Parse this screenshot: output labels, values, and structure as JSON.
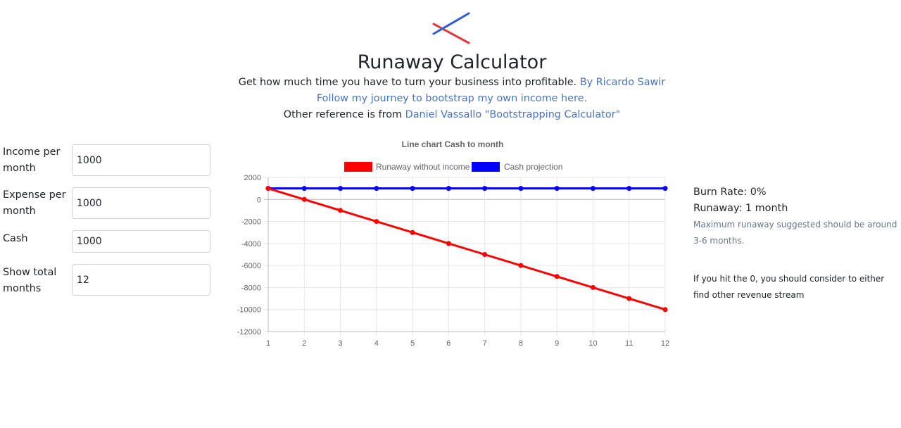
{
  "header": {
    "title": "Runaway Calculator",
    "subtitle_text": "Get how much time you have to turn your business into profitable.",
    "author_link": "By Ricardo Sawir",
    "journey_link": "Follow my journey to bootstrap my own income here.",
    "reference_prefix": "Other reference is from",
    "reference_link": "Daniel Vassallo \"Bootstrapping Calculator\"",
    "logo_icon": "crossed-lines-logo-icon",
    "link_color": "#4a73c2"
  },
  "form": {
    "income_label": "Income per month",
    "income_value": "1000",
    "expense_label": "Expense per month",
    "expense_value": "1000",
    "cash_label": "Cash",
    "cash_value": "1000",
    "months_label": "Show total months",
    "months_value": "12"
  },
  "results": {
    "burn_rate": "Burn Rate: 0%",
    "runaway": "Runaway: 1 month",
    "suggestion": "Maximum runaway suggested should be around 3-6 months.",
    "warning": "If you hit the 0, you should consider to either find other revenue stream"
  },
  "chart_data": {
    "type": "line",
    "title": "Line chart Cash to month",
    "x": [
      1,
      2,
      3,
      4,
      5,
      6,
      7,
      8,
      9,
      10,
      11,
      12
    ],
    "series": [
      {
        "name": "Runaway without income",
        "color": "#ff0000",
        "values": [
          1000,
          0,
          -1000,
          -2000,
          -3000,
          -4000,
          -5000,
          -6000,
          -7000,
          -8000,
          -9000,
          -10000
        ]
      },
      {
        "name": "Cash projection",
        "color": "#0000ff",
        "values": [
          1000,
          1000,
          1000,
          1000,
          1000,
          1000,
          1000,
          1000,
          1000,
          1000,
          1000,
          1000
        ]
      }
    ],
    "ylim": [
      -12000,
      2000
    ],
    "yticks": [
      2000,
      0,
      -2000,
      -4000,
      -6000,
      -8000,
      -10000,
      -12000
    ],
    "grid": true,
    "legend": "top"
  }
}
